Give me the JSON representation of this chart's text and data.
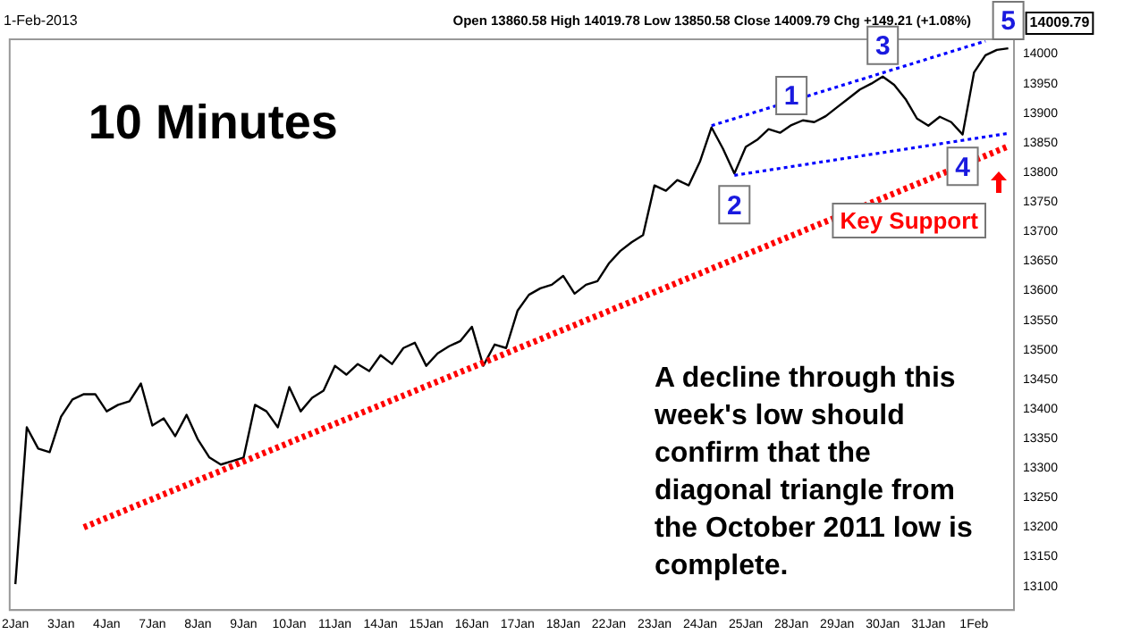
{
  "chart_data": {
    "type": "line",
    "title": "10 Minutes",
    "annotations": [
      "1-Feb-2013",
      "Open 13860.58 High 14019.78 Low 13850.58 Close 14009.79 Chg +149.21 (+1.08%)",
      {
        "text": "1",
        "y": 13880
      },
      {
        "text": "2",
        "y": 13795
      },
      {
        "text": "3",
        "y": 13965
      },
      {
        "text": "4",
        "y": 13860
      },
      {
        "text": "5",
        "y": 14022
      },
      "Key Support",
      "A decline through this week's low should confirm that the diagonal triangle from the October 2011 low is complete."
    ],
    "categories": [
      "2Jan",
      null,
      null,
      null,
      "3Jan",
      null,
      null,
      null,
      "4Jan",
      null,
      null,
      null,
      "7Jan",
      null,
      null,
      null,
      "8Jan",
      null,
      null,
      null,
      "9Jan",
      null,
      null,
      null,
      "10Jan",
      null,
      null,
      null,
      "11Jan",
      null,
      null,
      null,
      "14Jan",
      null,
      null,
      null,
      "15Jan",
      null,
      null,
      null,
      "16Jan",
      null,
      null,
      null,
      "17Jan",
      null,
      null,
      null,
      "18Jan",
      null,
      null,
      null,
      "22Jan",
      null,
      null,
      null,
      "23Jan",
      null,
      null,
      null,
      "24Jan",
      null,
      null,
      null,
      "25Jan",
      null,
      null,
      null,
      "28Jan",
      null,
      null,
      null,
      "29Jan",
      null,
      null,
      null,
      "30Jan",
      null,
      null,
      null,
      "31Jan",
      null,
      null,
      null,
      "1Feb",
      null,
      null,
      null
    ],
    "ylim": [
      13060,
      14025
    ],
    "yticks": [
      13100,
      13150,
      13200,
      13250,
      13300,
      13350,
      13400,
      13450,
      13500,
      13550,
      13600,
      13650,
      13700,
      13750,
      13800,
      13850,
      13900,
      13950,
      14000
    ],
    "marker": "none",
    "series": [
      {
        "color": "#000000",
        "line_style": "solid",
        "values": [
          13104,
          13369,
          13333,
          13327,
          13387,
          13416,
          13425,
          13425,
          13396,
          13407,
          13413,
          13443,
          13372,
          13384,
          13354,
          13390,
          13348,
          13318,
          13306,
          13312,
          13318,
          13407,
          13396,
          13369,
          13437,
          13396,
          13419,
          13431,
          13473,
          13458,
          13476,
          13464,
          13491,
          13476,
          13503,
          13512,
          13473,
          13494,
          13506,
          13515,
          13539,
          13473,
          13509,
          13503,
          13566,
          13593,
          13604,
          13610,
          13625,
          13595,
          13610,
          13616,
          13646,
          13667,
          13682,
          13694,
          13778,
          13769,
          13787,
          13778,
          13819,
          13876,
          13840,
          13798,
          13843,
          13855,
          13873,
          13867,
          13880,
          13888,
          13885,
          13895,
          13910,
          13925,
          13940,
          13950,
          13962,
          13948,
          13924,
          13891,
          13879,
          13894,
          13885,
          13864,
          13969,
          13998,
          14007,
          14009.79
        ],
        "value_labels": [
          null,
          null,
          null,
          null,
          null,
          null,
          null,
          null,
          null,
          null,
          null,
          null,
          null,
          null,
          null,
          null,
          null,
          null,
          null,
          null,
          null,
          null,
          null,
          null,
          null,
          null,
          null,
          null,
          null,
          null,
          null,
          null,
          null,
          null,
          null,
          null,
          null,
          null,
          null,
          null,
          null,
          null,
          null,
          null,
          null,
          null,
          null,
          null,
          null,
          null,
          null,
          null,
          null,
          null,
          null,
          null,
          null,
          null,
          null,
          null,
          null,
          null,
          null,
          null,
          null,
          null,
          null,
          null,
          null,
          null,
          null,
          null,
          null,
          null,
          null,
          null,
          null,
          null,
          null,
          null,
          null,
          null,
          null,
          null,
          null,
          null,
          null,
          "14009.79"
        ]
      },
      {
        "color": "#0000ff",
        "line_style": "dotted",
        "values": [
          null,
          null,
          null,
          null,
          null,
          null,
          null,
          null,
          null,
          null,
          null,
          null,
          null,
          null,
          null,
          null,
          null,
          null,
          null,
          null,
          null,
          null,
          null,
          null,
          null,
          null,
          null,
          null,
          null,
          null,
          null,
          null,
          null,
          null,
          null,
          null,
          null,
          null,
          null,
          null,
          null,
          null,
          null,
          null,
          null,
          null,
          null,
          null,
          null,
          null,
          null,
          null,
          null,
          null,
          null,
          null,
          null,
          null,
          null,
          null,
          null,
          13879,
          null,
          null,
          null,
          null,
          null,
          null,
          null,
          null,
          null,
          null,
          null,
          null,
          null,
          null,
          null,
          null,
          null,
          null,
          null,
          null,
          null,
          null,
          null,
          14022,
          null,
          null
        ]
      },
      {
        "color": "#0000ff",
        "line_style": "dotted",
        "values": [
          null,
          null,
          null,
          null,
          null,
          null,
          null,
          null,
          null,
          null,
          null,
          null,
          null,
          null,
          null,
          null,
          null,
          null,
          null,
          null,
          null,
          null,
          null,
          null,
          null,
          null,
          null,
          null,
          null,
          null,
          null,
          null,
          null,
          null,
          null,
          null,
          null,
          null,
          null,
          null,
          null,
          null,
          null,
          null,
          null,
          null,
          null,
          null,
          null,
          null,
          null,
          null,
          null,
          null,
          null,
          null,
          null,
          null,
          null,
          null,
          null,
          null,
          null,
          13795,
          null,
          null,
          null,
          null,
          null,
          null,
          null,
          null,
          null,
          null,
          null,
          null,
          null,
          null,
          null,
          null,
          null,
          null,
          null,
          null,
          null,
          null,
          null,
          13866
        ]
      },
      {
        "color": "#ff0000",
        "line_style": "dotted",
        "values": [
          null,
          null,
          null,
          null,
          null,
          null,
          13200,
          null,
          null,
          null,
          null,
          null,
          null,
          null,
          null,
          null,
          null,
          null,
          null,
          null,
          null,
          null,
          null,
          null,
          null,
          null,
          null,
          null,
          null,
          null,
          null,
          null,
          null,
          null,
          null,
          null,
          null,
          null,
          null,
          null,
          null,
          null,
          null,
          null,
          null,
          null,
          null,
          null,
          null,
          null,
          null,
          null,
          null,
          null,
          null,
          null,
          null,
          null,
          null,
          null,
          null,
          null,
          null,
          null,
          null,
          null,
          null,
          null,
          null,
          null,
          null,
          null,
          null,
          null,
          null,
          null,
          null,
          null,
          null,
          null,
          null,
          null,
          null,
          null,
          null,
          null,
          null,
          13844
        ]
      }
    ]
  }
}
